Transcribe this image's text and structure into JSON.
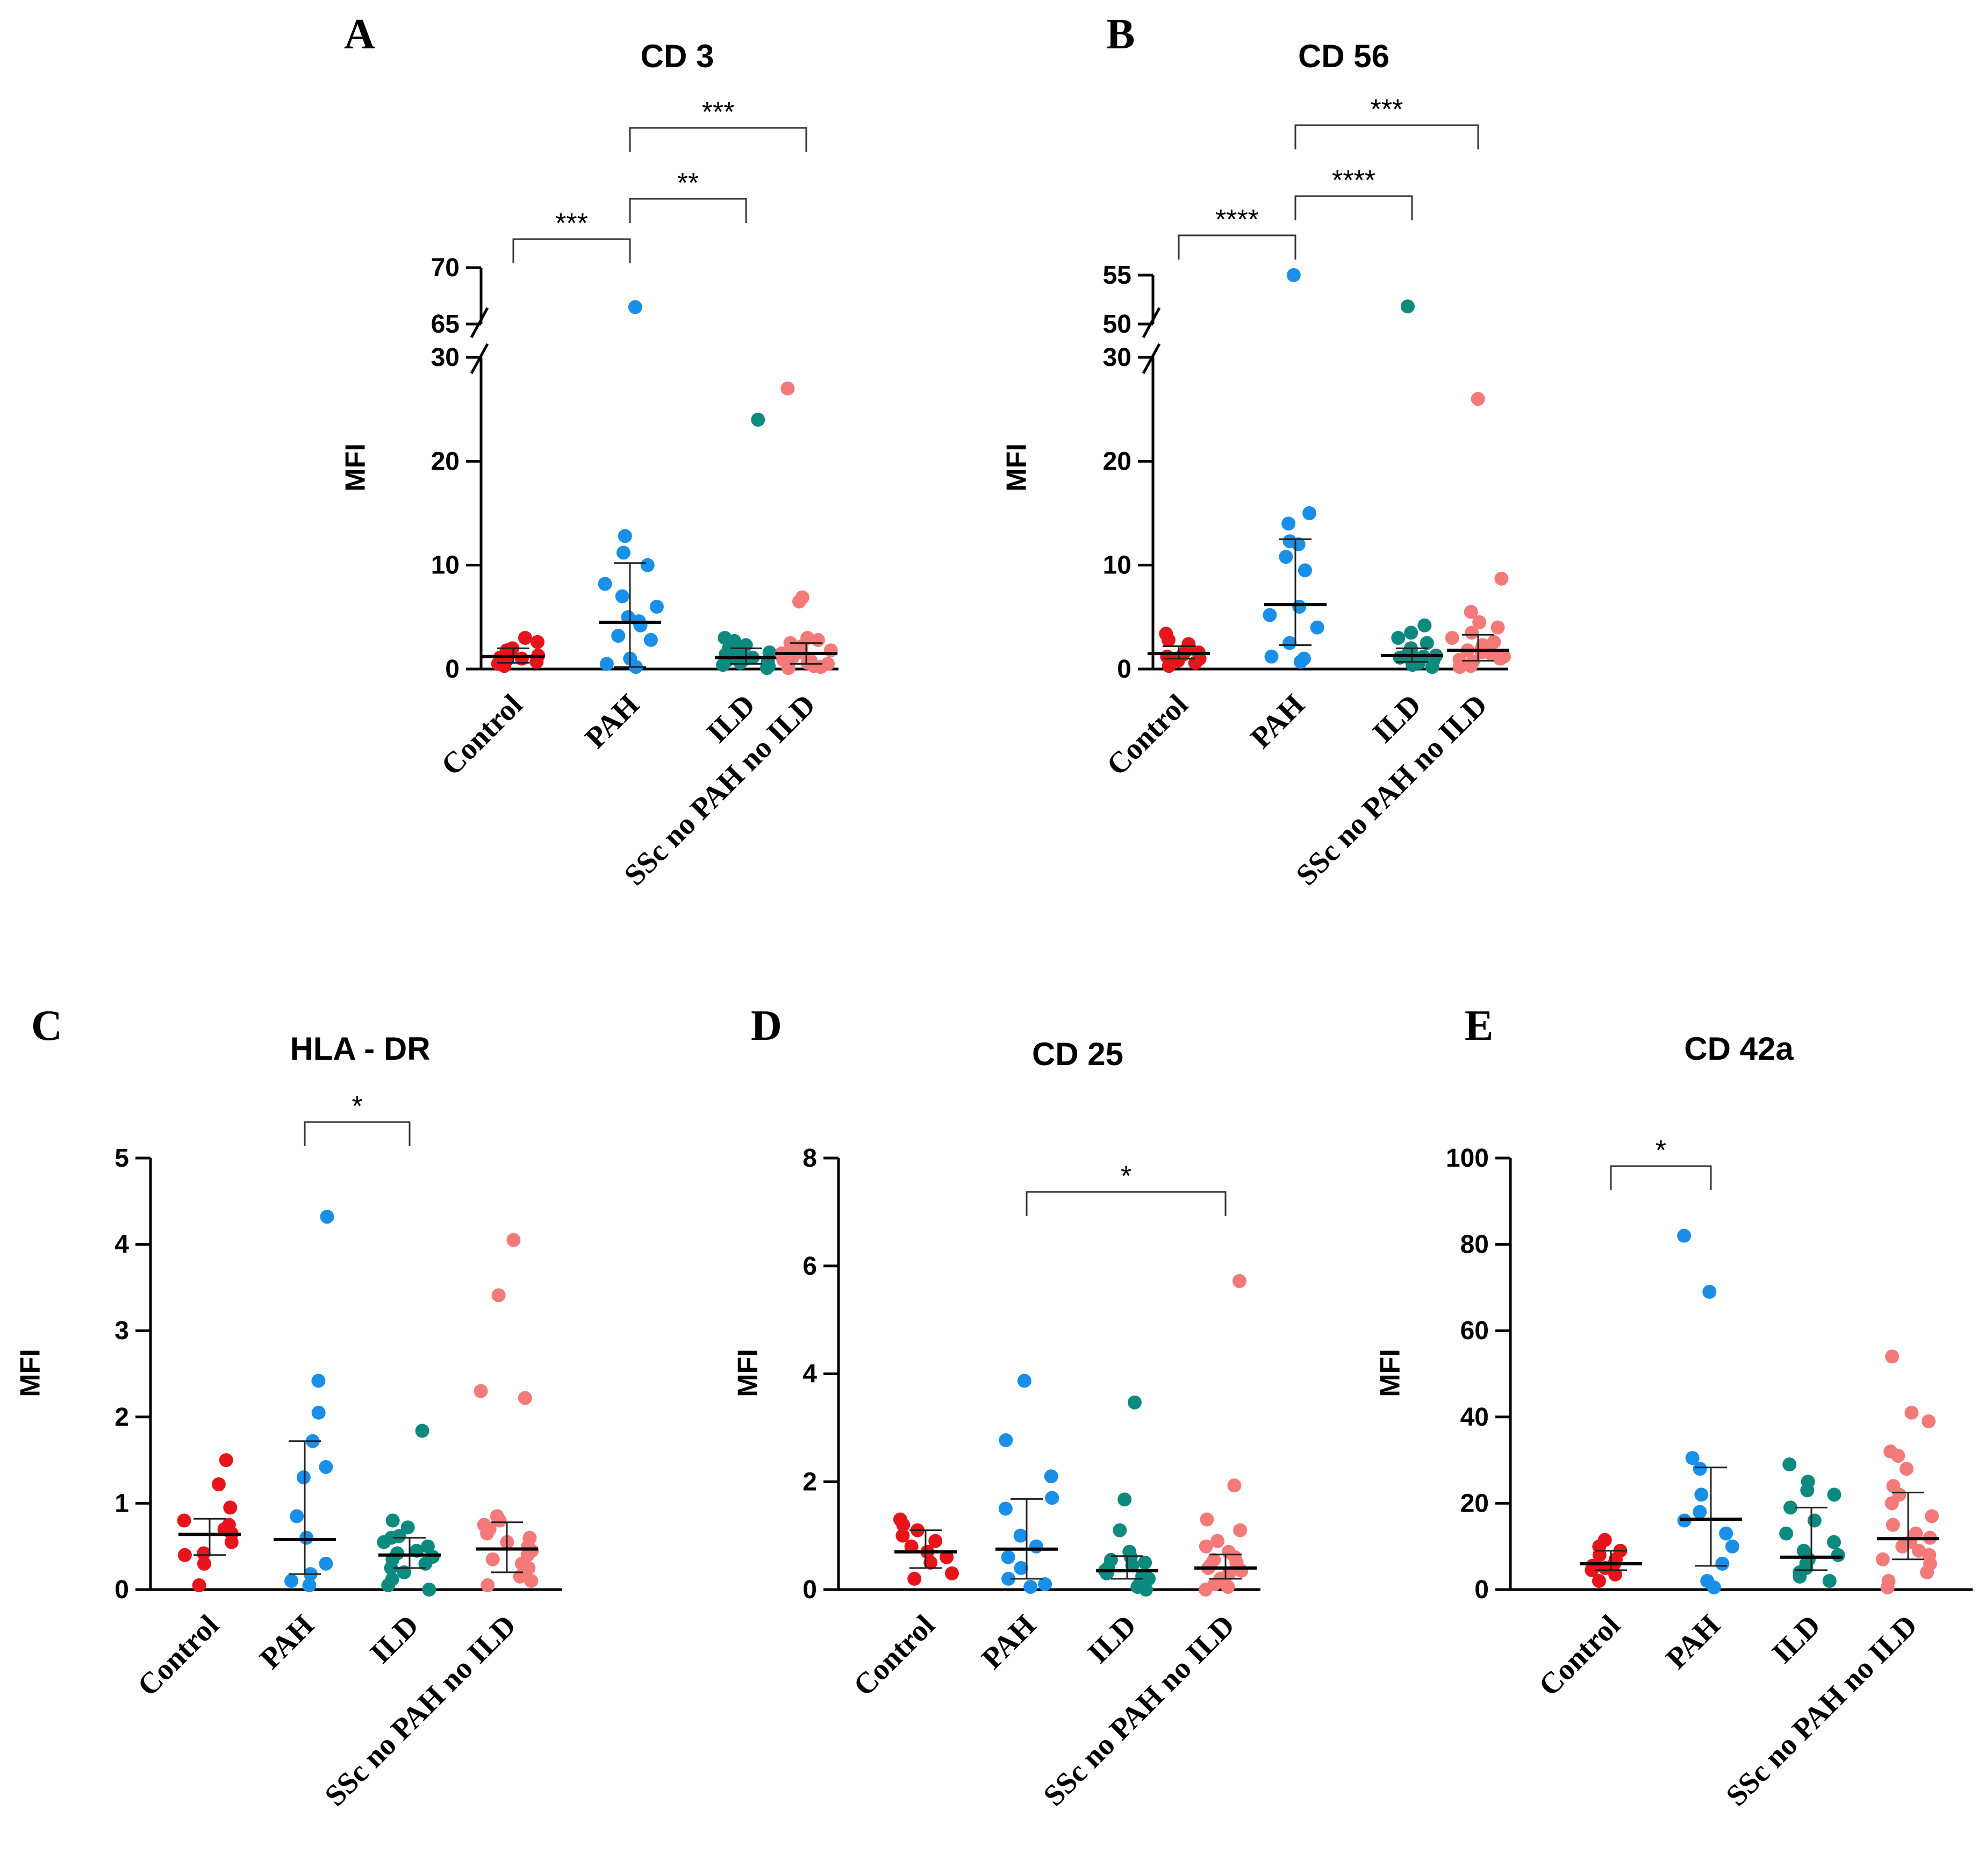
{
  "colors": {
    "Control": "#e8141b",
    "PAH": "#1a8fe8",
    "ILD": "#0d8a80",
    "SSc no PAH no ILD": "#f47a7a"
  },
  "chart_data": [
    {
      "id": "A",
      "type": "scatter",
      "letter": "A",
      "title": "CD 3",
      "ylabel": "MFI",
      "categories": [
        "Control",
        "PAH",
        "ILD",
        "SSc no PAH no ILD"
      ],
      "broken_axis": true,
      "ylim_lower": [
        0,
        30
      ],
      "ylim_upper": [
        65,
        70
      ],
      "yticks_lower": [
        0,
        10,
        20,
        30
      ],
      "ytick_labels_lower": [
        "0",
        "10",
        "20",
        "30"
      ],
      "yticks_upper": [
        65,
        70
      ],
      "ytick_labels_upper": [
        "65",
        "70"
      ],
      "groups": [
        {
          "name": "Control",
          "median": 1.2,
          "err": [
            0.6,
            2.0
          ],
          "points": [
            0.3,
            0.5,
            0.7,
            0.9,
            1.0,
            1.1,
            1.3,
            1.5,
            1.8,
            2.0,
            2.6,
            3.0
          ]
        },
        {
          "name": "PAH",
          "median": 4.5,
          "err": [
            0.2,
            10.2
          ],
          "points": [
            0.2,
            0.5,
            1.0,
            2.8,
            3.2,
            4.2,
            4.6,
            5.0,
            6.0,
            7.0,
            8.2,
            10.0,
            11.2,
            12.8,
            66.5
          ]
        },
        {
          "name": "ILD",
          "median": 1.1,
          "err": [
            0.5,
            2.0
          ],
          "points": [
            0.1,
            0.3,
            0.4,
            0.6,
            0.7,
            0.8,
            0.9,
            1.0,
            1.1,
            1.2,
            1.4,
            1.6,
            1.8,
            2.0,
            2.3,
            2.7,
            3.0,
            24.0
          ]
        },
        {
          "name": "SSc no PAH no ILD",
          "median": 1.5,
          "err": [
            0.5,
            2.5
          ],
          "points": [
            0.1,
            0.2,
            0.3,
            0.5,
            0.6,
            0.8,
            0.9,
            1.0,
            1.1,
            1.2,
            1.3,
            1.5,
            1.6,
            1.8,
            2.0,
            2.2,
            2.5,
            2.8,
            3.0,
            6.5,
            6.9,
            27.0
          ]
        }
      ],
      "significance": [
        {
          "from": "Control",
          "to": "PAH",
          "label": "***"
        },
        {
          "from": "PAH",
          "to": "ILD",
          "label": "**"
        },
        {
          "from": "PAH",
          "to": "SSc no PAH no ILD",
          "label": "***"
        }
      ]
    },
    {
      "id": "B",
      "type": "scatter",
      "letter": "B",
      "title": "CD 56",
      "ylabel": "MFI",
      "categories": [
        "Control",
        "PAH",
        "ILD",
        "SSc no PAH no ILD"
      ],
      "broken_axis": true,
      "ylim_lower": [
        0,
        30
      ],
      "ylim_upper": [
        50,
        55
      ],
      "yticks_lower": [
        0,
        10,
        20,
        30
      ],
      "ytick_labels_lower": [
        "0",
        "10",
        "20",
        "30"
      ],
      "yticks_upper": [
        50,
        55
      ],
      "ytick_labels_upper": [
        "50",
        "55"
      ],
      "groups": [
        {
          "name": "Control",
          "median": 1.5,
          "err": [
            1.0,
            2.2
          ],
          "points": [
            0.3,
            0.6,
            0.8,
            1.0,
            1.2,
            1.4,
            1.6,
            1.8,
            2.0,
            2.4,
            2.8,
            3.4
          ]
        },
        {
          "name": "PAH",
          "median": 6.2,
          "err": [
            2.3,
            12.5
          ],
          "points": [
            0.7,
            1.0,
            1.2,
            2.5,
            4.0,
            5.2,
            6.0,
            9.5,
            10.8,
            12.0,
            12.3,
            14.0,
            15.0,
            55.0
          ]
        },
        {
          "name": "ILD",
          "median": 1.3,
          "err": [
            0.7,
            2.0
          ],
          "points": [
            0.2,
            0.4,
            0.6,
            0.8,
            0.9,
            1.0,
            1.1,
            1.2,
            1.3,
            1.5,
            1.7,
            2.0,
            2.5,
            3.0,
            3.5,
            4.2,
            51.8
          ]
        },
        {
          "name": "SSc no PAH no ILD",
          "median": 1.8,
          "err": [
            0.8,
            3.3
          ],
          "points": [
            0.2,
            0.3,
            0.5,
            0.7,
            0.9,
            1.0,
            1.2,
            1.4,
            1.6,
            1.8,
            2.0,
            2.3,
            2.6,
            3.0,
            3.5,
            4.0,
            4.5,
            5.5,
            8.7,
            26.0
          ]
        }
      ],
      "significance": [
        {
          "from": "Control",
          "to": "PAH",
          "label": "****"
        },
        {
          "from": "PAH",
          "to": "ILD",
          "label": "****"
        },
        {
          "from": "PAH",
          "to": "SSc no PAH no ILD",
          "label": "***"
        }
      ]
    },
    {
      "id": "C",
      "type": "scatter",
      "letter": "C",
      "title": "HLA - DR",
      "ylabel": "MFI",
      "categories": [
        "Control",
        "PAH",
        "ILD",
        "SSc no PAH no ILD"
      ],
      "broken_axis": false,
      "ylim": [
        0,
        5
      ],
      "yticks": [
        0,
        1,
        2,
        3,
        4,
        5
      ],
      "ytick_labels": [
        "0",
        "1",
        "2",
        "3",
        "4",
        "5"
      ],
      "groups": [
        {
          "name": "Control",
          "median": 0.64,
          "err": [
            0.4,
            0.82
          ],
          "points": [
            0.05,
            0.3,
            0.4,
            0.42,
            0.55,
            0.65,
            0.7,
            0.75,
            0.8,
            0.95,
            1.22,
            1.5
          ]
        },
        {
          "name": "PAH",
          "median": 0.58,
          "err": [
            0.18,
            1.72
          ],
          "points": [
            0.05,
            0.1,
            0.18,
            0.3,
            0.6,
            0.85,
            1.3,
            1.42,
            1.72,
            2.05,
            2.42,
            4.32
          ]
        },
        {
          "name": "ILD",
          "median": 0.4,
          "err": [
            0.25,
            0.6
          ],
          "points": [
            0.0,
            0.05,
            0.12,
            0.2,
            0.25,
            0.3,
            0.35,
            0.38,
            0.42,
            0.45,
            0.5,
            0.55,
            0.6,
            0.62,
            0.72,
            0.8,
            1.84
          ]
        },
        {
          "name": "SSc no PAH no ILD",
          "median": 0.47,
          "err": [
            0.2,
            0.78
          ],
          "points": [
            0.05,
            0.1,
            0.15,
            0.25,
            0.3,
            0.35,
            0.4,
            0.45,
            0.5,
            0.55,
            0.6,
            0.65,
            0.7,
            0.75,
            0.8,
            0.85,
            2.22,
            2.3,
            3.41,
            4.05
          ]
        }
      ],
      "significance": [
        {
          "from": "PAH",
          "to": "ILD",
          "label": "*"
        }
      ]
    },
    {
      "id": "D",
      "type": "scatter",
      "letter": "D",
      "title": "CD 25",
      "ylabel": "MFI",
      "categories": [
        "Control",
        "PAH",
        "ILD",
        "SSc no PAH no ILD"
      ],
      "broken_axis": false,
      "ylim": [
        0,
        8
      ],
      "yticks": [
        0,
        2,
        4,
        6,
        8
      ],
      "ytick_labels": [
        "0",
        "2",
        "4",
        "6",
        "8"
      ],
      "groups": [
        {
          "name": "Control",
          "median": 0.7,
          "err": [
            0.4,
            1.1
          ],
          "points": [
            0.2,
            0.3,
            0.5,
            0.6,
            0.7,
            0.8,
            0.9,
            1.0,
            1.1,
            1.2,
            1.3
          ]
        },
        {
          "name": "PAH",
          "median": 0.75,
          "err": [
            0.2,
            1.68
          ],
          "points": [
            0.05,
            0.1,
            0.2,
            0.4,
            0.6,
            0.8,
            1.0,
            1.5,
            1.7,
            2.1,
            2.77,
            3.87
          ]
        },
        {
          "name": "ILD",
          "median": 0.35,
          "err": [
            0.2,
            0.62
          ],
          "points": [
            0.0,
            0.05,
            0.1,
            0.2,
            0.25,
            0.3,
            0.35,
            0.4,
            0.45,
            0.5,
            0.55,
            0.6,
            0.7,
            1.1,
            1.67,
            3.47
          ]
        },
        {
          "name": "SSc no PAH no ILD",
          "median": 0.4,
          "err": [
            0.2,
            0.65
          ],
          "points": [
            0.0,
            0.05,
            0.1,
            0.15,
            0.2,
            0.3,
            0.35,
            0.4,
            0.45,
            0.5,
            0.55,
            0.6,
            0.7,
            0.8,
            0.9,
            1.1,
            1.3,
            1.93,
            5.72
          ]
        }
      ],
      "significance": [
        {
          "from": "PAH",
          "to": "SSc no PAH no ILD",
          "label": "*"
        }
      ]
    },
    {
      "id": "E",
      "type": "scatter",
      "letter": "E",
      "title": "CD 42a",
      "ylabel": "MFI",
      "categories": [
        "Control",
        "PAH",
        "ILD",
        "SSc no PAH no ILD"
      ],
      "broken_axis": false,
      "ylim": [
        0,
        100
      ],
      "yticks": [
        0,
        20,
        40,
        60,
        80,
        100
      ],
      "ytick_labels": [
        "0",
        "20",
        "40",
        "60",
        "80",
        "100"
      ],
      "groups": [
        {
          "name": "Control",
          "median": 6.0,
          "err": [
            4.5,
            9.0
          ],
          "points": [
            2.0,
            3.5,
            4.5,
            5.0,
            5.5,
            6.0,
            7.0,
            8.0,
            9.0,
            10.0,
            11.5
          ]
        },
        {
          "name": "PAH",
          "median": 16.3,
          "err": [
            5.5,
            28.3
          ],
          "points": [
            0.5,
            2.0,
            6.0,
            10.0,
            13.0,
            16.0,
            18.0,
            22.0,
            28.0,
            30.5,
            69.0,
            82.0
          ]
        },
        {
          "name": "ILD",
          "median": 7.5,
          "err": [
            4.5,
            19.0
          ],
          "points": [
            2.0,
            3.0,
            4.0,
            5.0,
            6.0,
            7.0,
            8.0,
            9.0,
            11.0,
            13.0,
            16.0,
            19.0,
            22.0,
            23.0,
            25.0,
            29.0
          ]
        },
        {
          "name": "SSc no PAH no ILD",
          "median": 11.8,
          "err": [
            7.0,
            22.5
          ],
          "points": [
            0.5,
            2.0,
            4.0,
            6.0,
            7.0,
            8.0,
            9.0,
            10.0,
            11.0,
            12.0,
            13.0,
            15.0,
            17.0,
            20.0,
            22.0,
            24.0,
            28.0,
            31.0,
            32.0,
            39.0,
            41.0,
            54.0
          ]
        }
      ],
      "significance": [
        {
          "from": "Control",
          "to": "PAH",
          "label": "*"
        }
      ]
    }
  ]
}
